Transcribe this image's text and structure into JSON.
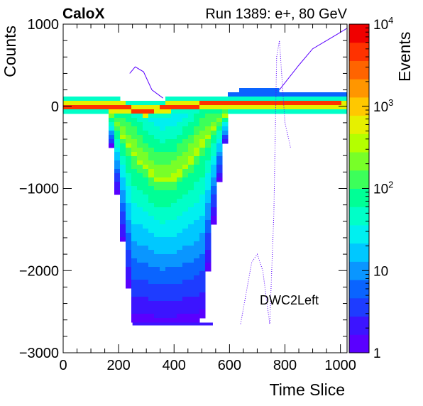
{
  "header": {
    "experiment": "CaloX",
    "run_info": "Run 1389: e+, 80 GeV"
  },
  "chart_data": {
    "type": "heatmap",
    "xlabel": "Time Slice",
    "ylabel": "Counts",
    "zlabel": "Events",
    "annotation": "DWC2Left",
    "xlim": [
      0,
      1024
    ],
    "ylim": [
      -3000,
      1000
    ],
    "zlim": [
      1,
      10000
    ],
    "zscale": "log",
    "x_ticks": [
      {
        "value": 0,
        "label": "0"
      },
      {
        "value": 200,
        "label": "200"
      },
      {
        "value": 400,
        "label": "400"
      },
      {
        "value": 600,
        "label": "600"
      },
      {
        "value": 800,
        "label": "800"
      },
      {
        "value": 1000,
        "label": "1000"
      }
    ],
    "y_ticks": [
      {
        "value": 1000,
        "label": "1000"
      },
      {
        "value": 0,
        "label": "0"
      },
      {
        "value": -1000,
        "label": "−1000"
      },
      {
        "value": -2000,
        "label": "−2000"
      },
      {
        "value": -3000,
        "label": "−3000"
      }
    ],
    "z_ticks": [
      {
        "value": 1,
        "label": "1"
      },
      {
        "value": 10,
        "label": "10"
      },
      {
        "value": 100,
        "label": "10",
        "exp": "2"
      },
      {
        "value": 1000,
        "label": "10",
        "exp": "3"
      },
      {
        "value": 10000,
        "label": "10",
        "exp": "4"
      }
    ],
    "colors": [
      "#5a00ff",
      "#3c14ff",
      "#1e3cff",
      "#0a64ff",
      "#0a96ff",
      "#00c8ff",
      "#00f0f0",
      "#00ffc8",
      "#00ff96",
      "#3cff5a",
      "#78ff28",
      "#b4ff00",
      "#e6f000",
      "#ffc800",
      "#ff9600",
      "#ff6400",
      "#ff3200",
      "#f00000"
    ],
    "baseline": {
      "description_free": true,
      "x": [
        0,
        160,
        220,
        300,
        400,
        520,
        600,
        700,
        800,
        900,
        1024
      ],
      "y": [
        0,
        0,
        -20,
        -60,
        0,
        20,
        25,
        30,
        25,
        20,
        15
      ]
    },
    "pulse_band": {
      "x": [
        160,
        200,
        250,
        300,
        350,
        400,
        450,
        500,
        550,
        600
      ],
      "y_core": [
        -50,
        -300,
        -600,
        -800,
        -950,
        -900,
        -750,
        -500,
        -250,
        -50
      ],
      "y_low": [
        -100,
        -1200,
        -2650,
        -2650,
        -2650,
        -2650,
        -2650,
        -2650,
        -1200,
        -100
      ]
    }
  }
}
